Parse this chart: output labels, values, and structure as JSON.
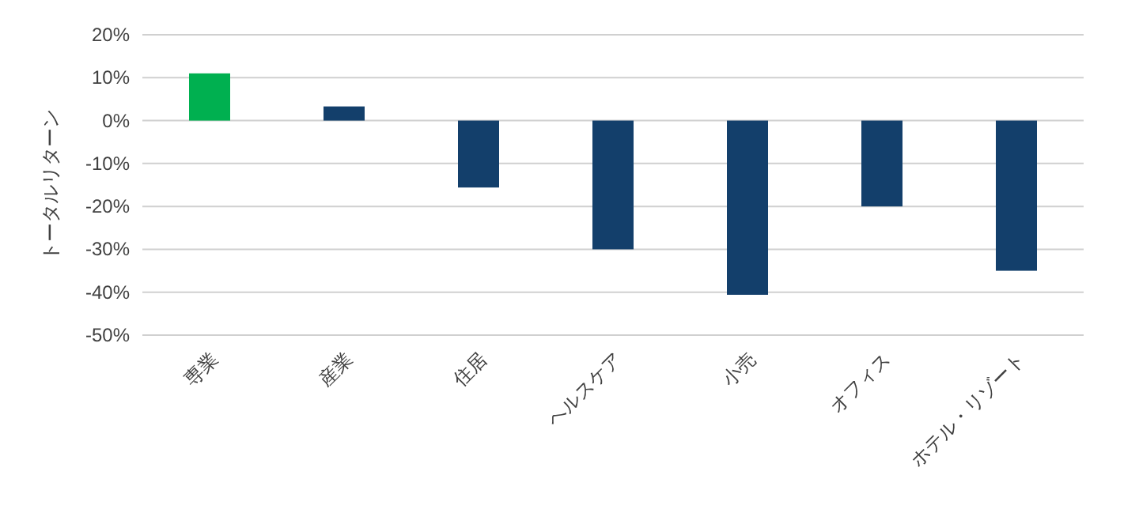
{
  "chart_data": {
    "type": "bar",
    "ylabel": "トータルリターン",
    "categories": [
      "専業",
      "産業",
      "住居",
      "ヘルスケア",
      "小売",
      "オフィス",
      "ホテル・リゾート"
    ],
    "values": [
      11,
      3.3,
      -15.6,
      -30,
      -40.6,
      -20,
      -35
    ],
    "colors": [
      "#00b050",
      "#133f6b",
      "#133f6b",
      "#133f6b",
      "#133f6b",
      "#133f6b",
      "#133f6b"
    ],
    "ylim": [
      -50,
      20
    ],
    "yticks": [
      {
        "value": 20,
        "label": "20%"
      },
      {
        "value": 10,
        "label": "10%"
      },
      {
        "value": 0,
        "label": "0%"
      },
      {
        "value": -10,
        "label": "-10%"
      },
      {
        "value": -20,
        "label": "-20%"
      },
      {
        "value": -30,
        "label": "-30%"
      },
      {
        "value": -40,
        "label": "-40%"
      },
      {
        "value": -50,
        "label": "-50%"
      }
    ],
    "grid": "y"
  }
}
